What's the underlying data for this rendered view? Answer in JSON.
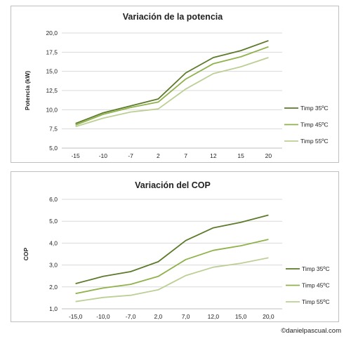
{
  "colors": {
    "series1": "#5c7a2a",
    "series2": "#8fb24a",
    "series3": "#bccf95",
    "grid": "#d9d9d9"
  },
  "chart_data": [
    {
      "type": "line",
      "title": "Variación de la potencia",
      "ylabel": "Potencia (kW)",
      "xlabel": "",
      "categories": [
        "-15",
        "-10",
        "-7",
        "2",
        "7",
        "12",
        "15",
        "20"
      ],
      "ylim": [
        5.0,
        20.0
      ],
      "yticks": [
        "5,0",
        "7,5",
        "10,0",
        "12,5",
        "15,0",
        "17,5",
        "20,0"
      ],
      "grid": true,
      "legend": "right",
      "series": [
        {
          "name": "Timp 35ºC",
          "values": [
            8.2,
            9.6,
            10.5,
            11.4,
            14.8,
            16.8,
            17.7,
            19.0
          ]
        },
        {
          "name": "Timp 45ºC",
          "values": [
            8.0,
            9.4,
            10.3,
            11.0,
            14.0,
            16.0,
            16.9,
            18.2
          ]
        },
        {
          "name": "Timp 55ºC",
          "values": [
            7.8,
            8.9,
            9.7,
            10.1,
            12.7,
            14.7,
            15.6,
            16.8
          ]
        }
      ]
    },
    {
      "type": "line",
      "title": "Variación del COP",
      "ylabel": "COP",
      "xlabel": "",
      "categories": [
        "-15,0",
        "-10,0",
        "-7,0",
        "2,0",
        "7,0",
        "12,0",
        "15,0",
        "20,0"
      ],
      "ylim": [
        1.0,
        6.0
      ],
      "yticks": [
        "1,0",
        "2,0",
        "3,0",
        "4,0",
        "5,0",
        "6,0"
      ],
      "grid": true,
      "legend": "right",
      "series": [
        {
          "name": "Timp 35ºC",
          "values": [
            2.15,
            2.48,
            2.7,
            3.15,
            4.12,
            4.7,
            4.95,
            5.28
          ]
        },
        {
          "name": "Timp 45ºC",
          "values": [
            1.7,
            1.95,
            2.12,
            2.48,
            3.25,
            3.67,
            3.88,
            4.17
          ]
        },
        {
          "name": "Timp 55ºC",
          "values": [
            1.33,
            1.52,
            1.62,
            1.87,
            2.52,
            2.9,
            3.08,
            3.33
          ]
        }
      ]
    }
  ],
  "watermark": "©danielpascual.com"
}
